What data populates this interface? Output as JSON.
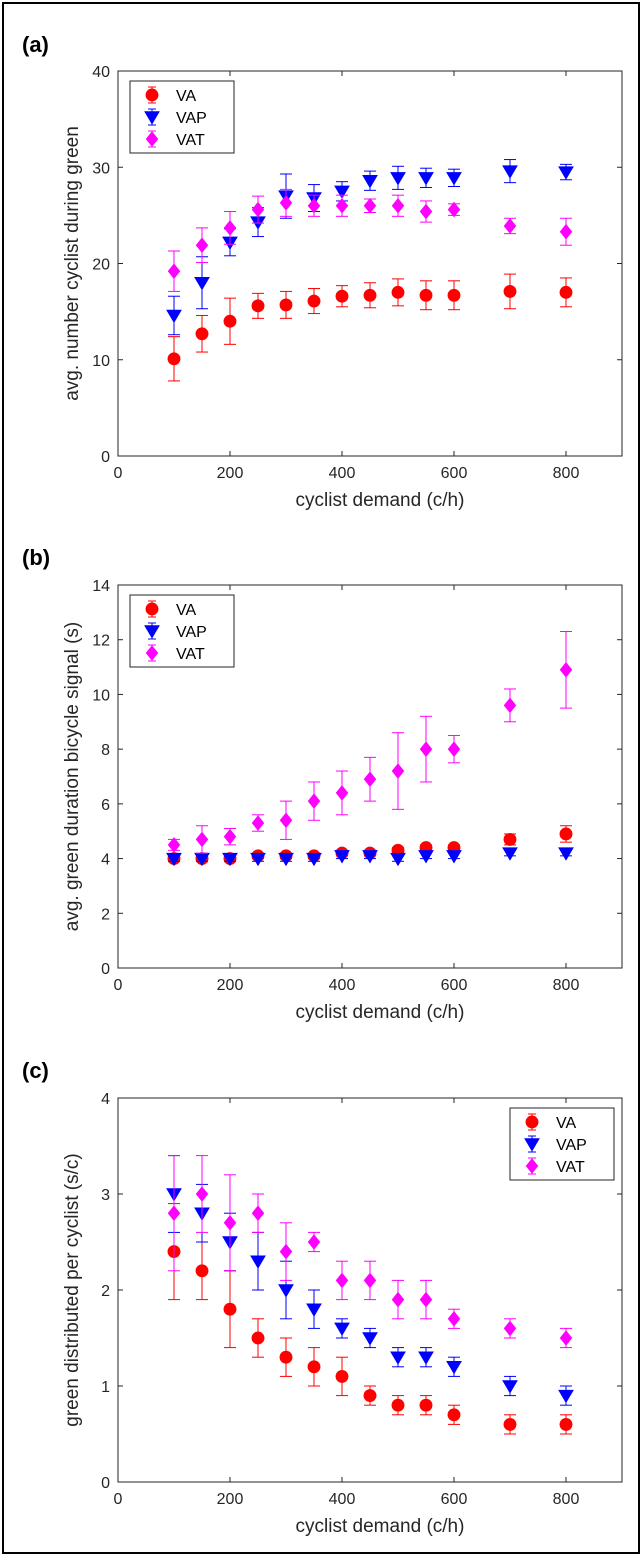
{
  "colors": {
    "VA": "#ff0000",
    "VAP": "#0000ff",
    "VAT": "#ff00ff"
  },
  "chart_data": [
    {
      "type": "scatter",
      "panel_label": "(a)",
      "xlabel": "cyclist demand (c/h)",
      "ylabel": "avg. number cyclist during green",
      "xlim": [
        0,
        900
      ],
      "ylim": [
        0,
        40
      ],
      "xticks": [
        0,
        200,
        400,
        600,
        800
      ],
      "yticks": [
        0,
        10,
        20,
        30,
        40
      ],
      "legend_position": "top-left",
      "grid": false,
      "x": [
        100,
        150,
        200,
        250,
        300,
        350,
        400,
        450,
        500,
        550,
        600,
        700,
        800
      ],
      "series": [
        {
          "name": "VA",
          "marker": "circle",
          "values": [
            10.1,
            12.7,
            14.0,
            15.6,
            15.7,
            16.1,
            16.6,
            16.7,
            17.0,
            16.7,
            16.7,
            17.1,
            17.0
          ],
          "errors": [
            2.3,
            1.9,
            2.4,
            1.3,
            1.4,
            1.3,
            1.1,
            1.3,
            1.4,
            1.5,
            1.5,
            1.8,
            1.5
          ]
        },
        {
          "name": "VAP",
          "marker": "triangle-down",
          "values": [
            14.6,
            18.0,
            22.2,
            24.3,
            27.0,
            26.8,
            27.5,
            28.6,
            28.9,
            28.9,
            28.9,
            29.6,
            29.5
          ],
          "errors": [
            2.0,
            2.7,
            1.4,
            1.5,
            2.3,
            1.4,
            1.0,
            1.0,
            1.2,
            1.0,
            0.9,
            1.2,
            0.8
          ]
        },
        {
          "name": "VAT",
          "marker": "diamond",
          "values": [
            19.2,
            21.9,
            23.7,
            25.6,
            26.3,
            26.0,
            26.0,
            26.0,
            26.0,
            25.4,
            25.6,
            23.9,
            23.3
          ],
          "errors": [
            2.1,
            1.8,
            1.7,
            1.4,
            1.4,
            1.1,
            1.1,
            0.7,
            1.1,
            1.1,
            0.6,
            0.8,
            1.4
          ]
        }
      ]
    },
    {
      "type": "scatter",
      "panel_label": "(b)",
      "xlabel": "cyclist demand (c/h)",
      "ylabel": "avg. green duration bicycle signal (s)",
      "xlim": [
        0,
        900
      ],
      "ylim": [
        0,
        14
      ],
      "xticks": [
        0,
        200,
        400,
        600,
        800
      ],
      "yticks": [
        0,
        2,
        4,
        6,
        8,
        10,
        12,
        14
      ],
      "legend_position": "top-left",
      "grid": false,
      "x": [
        100,
        150,
        200,
        250,
        300,
        350,
        400,
        450,
        500,
        550,
        600,
        700,
        800
      ],
      "series": [
        {
          "name": "VA",
          "marker": "circle",
          "values": [
            4.0,
            4.0,
            4.0,
            4.1,
            4.1,
            4.1,
            4.2,
            4.2,
            4.3,
            4.4,
            4.4,
            4.7,
            4.9
          ],
          "errors": [
            0.1,
            0.1,
            0.1,
            0.1,
            0.1,
            0.1,
            0.1,
            0.1,
            0.1,
            0.1,
            0.1,
            0.2,
            0.3
          ]
        },
        {
          "name": "VAP",
          "marker": "triangle-down",
          "values": [
            4.0,
            4.0,
            4.0,
            4.0,
            4.0,
            4.0,
            4.1,
            4.1,
            4.0,
            4.1,
            4.1,
            4.2,
            4.2
          ],
          "errors": [
            0.1,
            0.1,
            0.1,
            0.1,
            0.1,
            0.1,
            0.1,
            0.1,
            0.1,
            0.1,
            0.1,
            0.1,
            0.1
          ]
        },
        {
          "name": "VAT",
          "marker": "diamond",
          "values": [
            4.5,
            4.7,
            4.8,
            5.3,
            5.4,
            6.1,
            6.4,
            6.9,
            7.2,
            8.0,
            8.0,
            9.6,
            10.9
          ],
          "errors": [
            0.2,
            0.5,
            0.3,
            0.3,
            0.7,
            0.7,
            0.8,
            0.8,
            1.4,
            1.2,
            0.5,
            0.6,
            1.4
          ]
        }
      ]
    },
    {
      "type": "scatter",
      "panel_label": "(c)",
      "xlabel": "cyclist demand (c/h)",
      "ylabel": "green distributed per cyclist (s/c)",
      "xlim": [
        0,
        900
      ],
      "ylim": [
        0,
        4
      ],
      "xticks": [
        0,
        200,
        400,
        600,
        800
      ],
      "yticks": [
        0,
        1,
        2,
        3,
        4
      ],
      "legend_position": "top-right",
      "grid": false,
      "x": [
        100,
        150,
        200,
        250,
        300,
        350,
        400,
        450,
        500,
        550,
        600,
        700,
        800
      ],
      "series": [
        {
          "name": "VA",
          "marker": "circle",
          "values": [
            2.4,
            2.2,
            1.8,
            1.5,
            1.3,
            1.2,
            1.1,
            0.9,
            0.8,
            0.8,
            0.7,
            0.6,
            0.6
          ],
          "errors": [
            0.5,
            0.3,
            0.4,
            0.2,
            0.2,
            0.2,
            0.2,
            0.1,
            0.1,
            0.1,
            0.1,
            0.1,
            0.1
          ]
        },
        {
          "name": "VAP",
          "marker": "triangle-down",
          "values": [
            3.0,
            2.8,
            2.5,
            2.3,
            2.0,
            1.8,
            1.6,
            1.5,
            1.3,
            1.3,
            1.2,
            1.0,
            0.9
          ],
          "errors": [
            0.4,
            0.3,
            0.3,
            0.3,
            0.3,
            0.2,
            0.1,
            0.1,
            0.1,
            0.1,
            0.1,
            0.1,
            0.1
          ]
        },
        {
          "name": "VAT",
          "marker": "diamond",
          "values": [
            2.8,
            3.0,
            2.7,
            2.8,
            2.4,
            2.5,
            2.1,
            2.1,
            1.9,
            1.9,
            1.7,
            1.6,
            1.5
          ],
          "errors": [
            0.6,
            0.4,
            0.5,
            0.2,
            0.3,
            0.1,
            0.2,
            0.2,
            0.2,
            0.2,
            0.1,
            0.1,
            0.1
          ]
        }
      ]
    }
  ]
}
